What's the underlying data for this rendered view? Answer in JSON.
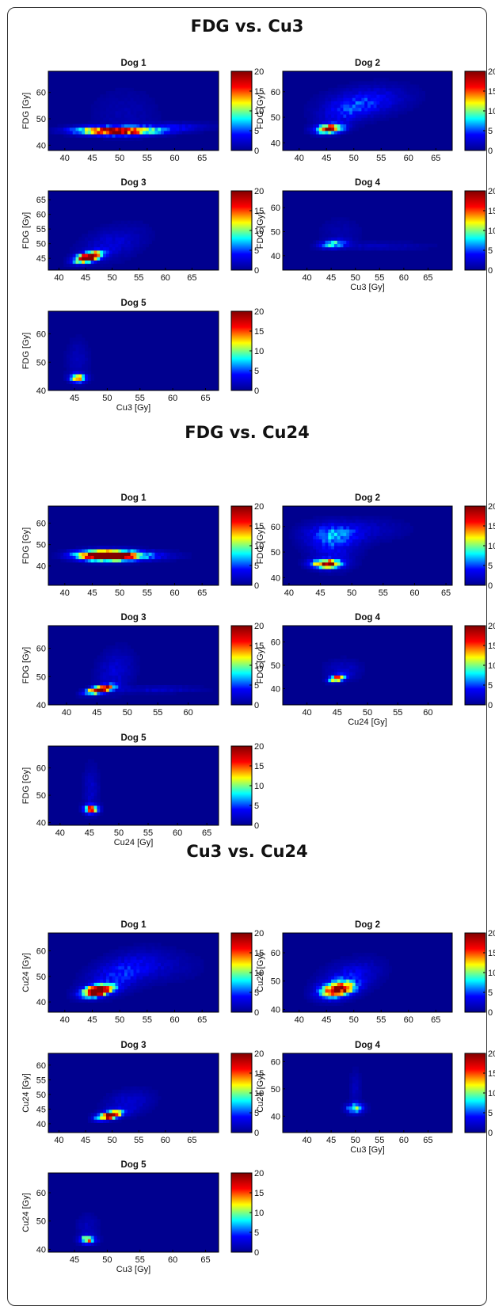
{
  "colormap": {
    "name": "jet",
    "stops": [
      "#00008f",
      "#0000ff",
      "#00ffff",
      "#ffff00",
      "#ff0000",
      "#800000"
    ],
    "background": "#00008f",
    "ticks": [
      "0",
      "5",
      "10",
      "15",
      "20"
    ],
    "range": [
      0,
      20
    ]
  },
  "chart_data": [
    {
      "type": "heatmap",
      "title": "FDG vs. Cu3",
      "panels": [
        {
          "id": "dog1",
          "title": "Dog 1",
          "xticks": [
            "40",
            "45",
            "50",
            "55",
            "60",
            "65"
          ],
          "xlim": [
            37,
            68
          ],
          "yticks": [
            "40",
            "50",
            "60"
          ],
          "ylim": [
            38,
            68
          ],
          "xlabel": "",
          "ylabel": "FDG [Gy]",
          "clusters": [
            {
              "x": 49,
              "y": 45.5,
              "sx": 4.5,
              "sy": 1.0,
              "v": 22,
              "r": -0.05
            },
            {
              "x": 58,
              "y": 46.5,
              "sx": 5.5,
              "sy": 1.2,
              "v": 4,
              "r": 0.3
            },
            {
              "x": 51,
              "y": 52,
              "sx": 4,
              "sy": 6,
              "v": 1.2,
              "r": 0
            }
          ]
        },
        {
          "id": "dog2",
          "title": "Dog 2",
          "xticks": [
            "40",
            "45",
            "50",
            "55",
            "60",
            "65"
          ],
          "xlim": [
            37,
            68
          ],
          "yticks": [
            "40",
            "50",
            "60"
          ],
          "ylim": [
            37,
            68
          ],
          "xlabel": "",
          "ylabel": "FDG [Gy]",
          "clusters": [
            {
              "x": 45.5,
              "y": 45.5,
              "sx": 1.6,
              "sy": 1.1,
              "v": 20,
              "r": 0.2
            },
            {
              "x": 52,
              "y": 56,
              "sx": 5,
              "sy": 4,
              "v": 4,
              "r": 0.3
            },
            {
              "x": 48,
              "y": 51,
              "sx": 3,
              "sy": 4,
              "v": 2.5,
              "r": 0.5
            }
          ]
        },
        {
          "id": "dog3",
          "title": "Dog 3",
          "xticks": [
            "40",
            "45",
            "50",
            "55",
            "60",
            "65"
          ],
          "xlim": [
            38,
            70
          ],
          "yticks": [
            "45",
            "50",
            "55",
            "60",
            "65"
          ],
          "ylim": [
            41,
            68
          ],
          "xlabel": "",
          "ylabel": "FDG [Gy]",
          "clusters": [
            {
              "x": 45.5,
              "y": 45.5,
              "sx": 1.6,
              "sy": 1.2,
              "v": 26,
              "r": 0.5
            },
            {
              "x": 50,
              "y": 50,
              "sx": 4,
              "sy": 4,
              "v": 2.5,
              "r": 0.4
            }
          ]
        },
        {
          "id": "dog4",
          "title": "Dog 4",
          "xticks": [
            "40",
            "45",
            "50",
            "55",
            "60",
            "65"
          ],
          "xlim": [
            35,
            70
          ],
          "yticks": [
            "40",
            "50",
            "60"
          ],
          "ylim": [
            34,
            67
          ],
          "xlabel": "Cu3 [Gy]",
          "ylabel": "FDG [Gy]",
          "clusters": [
            {
              "x": 45.5,
              "y": 45,
              "sx": 1.8,
              "sy": 1.2,
              "v": 8,
              "r": 0.3
            },
            {
              "x": 55,
              "y": 44,
              "sx": 7,
              "sy": 1.2,
              "v": 1.5,
              "r": 0
            },
            {
              "x": 47,
              "y": 50,
              "sx": 3,
              "sy": 4,
              "v": 1,
              "r": 0
            }
          ]
        },
        {
          "id": "dog5",
          "title": "Dog 5",
          "xticks": [
            "45",
            "50",
            "55",
            "60",
            "65"
          ],
          "xlim": [
            41,
            67
          ],
          "yticks": [
            "40",
            "50",
            "60"
          ],
          "ylim": [
            40,
            68
          ],
          "xlabel": "Cu3 [Gy]",
          "ylabel": "FDG [Gy]",
          "clusters": [
            {
              "x": 45.5,
              "y": 44.5,
              "sx": 0.8,
              "sy": 1.0,
              "v": 14,
              "r": 0
            },
            {
              "x": 45.5,
              "y": 51,
              "sx": 1.2,
              "sy": 5,
              "v": 1.5,
              "r": 0
            }
          ]
        }
      ]
    },
    {
      "type": "heatmap",
      "title": "FDG vs. Cu24",
      "panels": [
        {
          "id": "dog1",
          "title": "Dog 1",
          "xticks": [
            "40",
            "45",
            "50",
            "55",
            "60",
            "65"
          ],
          "xlim": [
            37,
            68
          ],
          "yticks": [
            "40",
            "50",
            "60"
          ],
          "ylim": [
            31,
            68
          ],
          "xlabel": "",
          "ylabel": "FDG [Gy]",
          "clusters": [
            {
              "x": 48,
              "y": 45,
              "sx": 3.5,
              "sy": 1.5,
              "v": 35,
              "r": 0
            },
            {
              "x": 55,
              "y": 45,
              "sx": 4,
              "sy": 1.5,
              "v": 3,
              "r": 0
            }
          ]
        },
        {
          "id": "dog2",
          "title": "Dog 2",
          "xticks": [
            "40",
            "45",
            "50",
            "55",
            "60",
            "65"
          ],
          "xlim": [
            39,
            66
          ],
          "yticks": [
            "40",
            "50",
            "60"
          ],
          "ylim": [
            37,
            68
          ],
          "xlabel": "",
          "ylabel": "FDG [Gy]",
          "clusters": [
            {
              "x": 46,
              "y": 45.5,
              "sx": 1.5,
              "sy": 1.1,
              "v": 20,
              "r": 0
            },
            {
              "x": 47,
              "y": 57,
              "sx": 3,
              "sy": 3,
              "v": 5,
              "r": 0
            },
            {
              "x": 47,
              "y": 51,
              "sx": 2.5,
              "sy": 5,
              "v": 3,
              "r": 0
            },
            {
              "x": 53,
              "y": 59,
              "sx": 4,
              "sy": 3,
              "v": 1.5,
              "r": 0
            }
          ]
        },
        {
          "id": "dog3",
          "title": "Dog 3",
          "xticks": [
            "40",
            "45",
            "50",
            "55",
            "60"
          ],
          "xlim": [
            37,
            65
          ],
          "yticks": [
            "40",
            "50",
            "60"
          ],
          "ylim": [
            40,
            68
          ],
          "xlabel": "",
          "ylabel": "FDG [Gy]",
          "clusters": [
            {
              "x": 45.5,
              "y": 45.5,
              "sx": 1.4,
              "sy": 1.0,
              "v": 26,
              "r": 0.6
            },
            {
              "x": 48,
              "y": 52,
              "sx": 2,
              "sy": 5,
              "v": 2.5,
              "r": 0.2
            },
            {
              "x": 55,
              "y": 45.5,
              "sx": 5,
              "sy": 0.8,
              "v": 2,
              "r": 0
            }
          ]
        },
        {
          "id": "dog4",
          "title": "Dog 4",
          "xticks": [
            "40",
            "45",
            "50",
            "55",
            "60"
          ],
          "xlim": [
            36,
            64
          ],
          "yticks": [
            "40",
            "50",
            "60"
          ],
          "ylim": [
            33,
            67
          ],
          "xlabel": "Cu24 [Gy]",
          "ylabel": "FDG [Gy]",
          "clusters": [
            {
              "x": 45,
              "y": 44.5,
              "sx": 0.9,
              "sy": 1.0,
              "v": 16,
              "r": 0.4
            },
            {
              "x": 46,
              "y": 48,
              "sx": 2,
              "sy": 3,
              "v": 2,
              "r": 0
            }
          ]
        },
        {
          "id": "dog5",
          "title": "Dog 5",
          "xticks": [
            "40",
            "45",
            "50",
            "55",
            "60",
            "65"
          ],
          "xlim": [
            38,
            67
          ],
          "yticks": [
            "40",
            "50",
            "60"
          ],
          "ylim": [
            39,
            68
          ],
          "xlabel": "Cu24 [Gy]",
          "ylabel": "FDG [Gy]",
          "clusters": [
            {
              "x": 45.3,
              "y": 45,
              "sx": 0.8,
              "sy": 1.0,
              "v": 16,
              "r": 0
            },
            {
              "x": 45.3,
              "y": 52,
              "sx": 0.9,
              "sy": 6,
              "v": 2,
              "r": 0
            }
          ]
        }
      ]
    },
    {
      "type": "heatmap",
      "title": "Cu3 vs. Cu24",
      "panels": [
        {
          "id": "dog1",
          "title": "Dog 1",
          "xticks": [
            "40",
            "45",
            "50",
            "55",
            "60",
            "65"
          ],
          "xlim": [
            37,
            68
          ],
          "yticks": [
            "40",
            "50",
            "60"
          ],
          "ylim": [
            36,
            67
          ],
          "xlabel": "",
          "ylabel": "Cu24 [Gy]",
          "clusters": [
            {
              "x": 46,
              "y": 44.5,
              "sx": 1.8,
              "sy": 1.5,
              "v": 28,
              "r": 0.4
            },
            {
              "x": 50,
              "y": 51,
              "sx": 4,
              "sy": 5,
              "v": 4,
              "r": 0.5
            },
            {
              "x": 57,
              "y": 54,
              "sx": 5,
              "sy": 4,
              "v": 1.5,
              "r": 0
            }
          ]
        },
        {
          "id": "dog2",
          "title": "Dog 2",
          "xticks": [
            "40",
            "45",
            "50",
            "55",
            "60",
            "65"
          ],
          "xlim": [
            37,
            68
          ],
          "yticks": [
            "40",
            "50",
            "60"
          ],
          "ylim": [
            39,
            67
          ],
          "xlabel": "",
          "ylabel": "Cu24 [Gy]",
          "clusters": [
            {
              "x": 47,
              "y": 47,
              "sx": 2,
              "sy": 1.8,
              "v": 20,
              "r": 0.3
            },
            {
              "x": 49,
              "y": 51,
              "sx": 3.5,
              "sy": 4,
              "v": 4,
              "r": 0.4
            }
          ]
        },
        {
          "id": "dog3",
          "title": "Dog 3",
          "xticks": [
            "40",
            "45",
            "50",
            "55",
            "60",
            "65"
          ],
          "xlim": [
            38,
            70
          ],
          "yticks": [
            "40",
            "45",
            "50",
            "55",
            "60"
          ],
          "ylim": [
            37,
            64
          ],
          "xlabel": "",
          "ylabel": "Cu24 [Gy]",
          "clusters": [
            {
              "x": 49.5,
              "y": 43,
              "sx": 1.5,
              "sy": 1.0,
              "v": 24,
              "r": 0.5
            },
            {
              "x": 53,
              "y": 47,
              "sx": 3,
              "sy": 3,
              "v": 2.5,
              "r": 0.3
            }
          ]
        },
        {
          "id": "dog4",
          "title": "Dog 4",
          "xticks": [
            "40",
            "45",
            "50",
            "55",
            "60",
            "65"
          ],
          "xlim": [
            35,
            70
          ],
          "yticks": [
            "40",
            "50",
            "60"
          ],
          "ylim": [
            34,
            63
          ],
          "xlabel": "Cu3 [Gy]",
          "ylabel": "Cu24 [Gy]",
          "clusters": [
            {
              "x": 50,
              "y": 43,
              "sx": 1.2,
              "sy": 1.2,
              "v": 10,
              "r": 0
            },
            {
              "x": 50,
              "y": 50,
              "sx": 0.8,
              "sy": 5,
              "v": 1.5,
              "r": 0
            }
          ]
        },
        {
          "id": "dog5",
          "title": "Dog 5",
          "xticks": [
            "45",
            "50",
            "55",
            "60",
            "65"
          ],
          "xlim": [
            41,
            67
          ],
          "yticks": [
            "40",
            "50",
            "60"
          ],
          "ylim": [
            39,
            67
          ],
          "xlabel": "Cu3 [Gy]",
          "ylabel": "Cu24 [Gy]",
          "clusters": [
            {
              "x": 47,
              "y": 43.5,
              "sx": 0.8,
              "sy": 0.9,
              "v": 14,
              "r": 0
            },
            {
              "x": 47,
              "y": 48,
              "sx": 1.2,
              "sy": 3,
              "v": 1.5,
              "r": 0
            }
          ]
        }
      ]
    }
  ]
}
